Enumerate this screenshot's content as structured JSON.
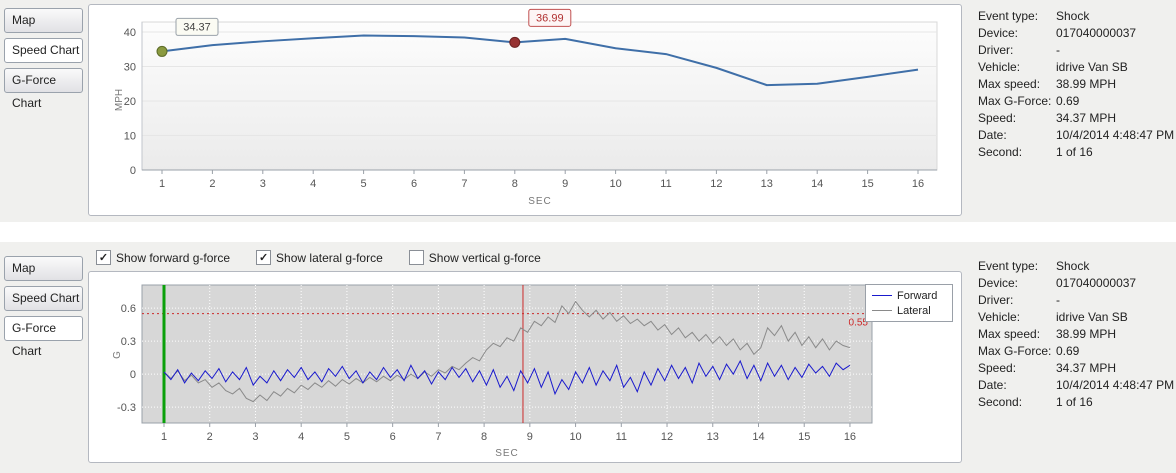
{
  "tabs_top": [
    {
      "label": "Map",
      "active": false
    },
    {
      "label": "Speed Chart",
      "active": true
    },
    {
      "label": "G-Force Chart",
      "active": false
    }
  ],
  "tabs_bottom": [
    {
      "label": "Map",
      "active": false
    },
    {
      "label": "Speed Chart",
      "active": false
    },
    {
      "label": "G-Force Chart",
      "active": true
    }
  ],
  "gforce_controls": {
    "checkboxes": [
      {
        "label": "Show forward g-force",
        "checked": true
      },
      {
        "label": "Show lateral g-force",
        "checked": true
      },
      {
        "label": "Show vertical g-force",
        "checked": false
      }
    ]
  },
  "event_info": {
    "rows": [
      {
        "label": "Event type:",
        "value": "Shock",
        "flagged": true
      },
      {
        "label": "Device:",
        "value": "017040000037",
        "flagged": false
      },
      {
        "label": "Driver:",
        "value": "-",
        "flagged": false
      },
      {
        "label": "Vehicle:",
        "value": "idrive Van SB",
        "flagged": false
      },
      {
        "label": "Max speed:",
        "value": "38.99 MPH",
        "flagged": false
      },
      {
        "label": "Max G-Force:",
        "value": "0.69",
        "flagged": true
      },
      {
        "label": "Speed:",
        "value": "34.37 MPH",
        "flagged": false
      },
      {
        "label": "Date:",
        "value": "10/4/2014 4:48:47 PM",
        "flagged": false
      },
      {
        "label": "Second:",
        "value": "1 of 16",
        "flagged": false
      }
    ]
  },
  "chart_data": [
    {
      "type": "line",
      "title": "Speed Chart",
      "xlabel": "SEC",
      "ylabel": "MPH",
      "x": [
        1,
        2,
        3,
        4,
        5,
        6,
        7,
        8,
        9,
        10,
        11,
        12,
        13,
        14,
        15,
        16
      ],
      "values": [
        34.37,
        36.2,
        37.3,
        38.2,
        38.99,
        38.8,
        38.4,
        36.99,
        38.0,
        35.3,
        33.6,
        29.6,
        24.6,
        25.0,
        27.0,
        29.1
      ],
      "ylim": [
        0,
        40
      ],
      "yticks": [
        0,
        10,
        20,
        30,
        40
      ],
      "line_color": "#3f6fa8",
      "grid": "faint-horizontal",
      "markers": [
        {
          "x": 1,
          "y": 34.37,
          "label": "34.37",
          "dot": "#8a9a40",
          "dot_border": "#5c6b28",
          "box_fill": "#fbfbf3",
          "box_border": "#9aa2aa",
          "text": "#444444"
        },
        {
          "x": 8,
          "y": 36.99,
          "label": "36.99",
          "dot": "#963232",
          "dot_border": "#6b2222",
          "box_fill": "#fdf5f5",
          "box_border": "#c05050",
          "text": "#b03030"
        }
      ]
    },
    {
      "type": "line",
      "title": "G-Force Chart",
      "xlabel": "SEC",
      "ylabel": "G",
      "x_start": 1.0,
      "x_step": 0.15,
      "ylim": [
        -0.45,
        0.81
      ],
      "yticks": [
        -0.3,
        0,
        0.3,
        0.6
      ],
      "xticks": [
        1,
        2,
        3,
        4,
        5,
        6,
        7,
        8,
        9,
        10,
        11,
        12,
        13,
        14,
        15,
        16
      ],
      "plot_bg": "#d7d7d7",
      "grid": "dotted-both",
      "legend_position": "right",
      "threshold": {
        "y": 0.55,
        "label": "0.55",
        "color": "#cc2a2a"
      },
      "vlines": [
        {
          "x": 1.0,
          "color": "#0aa00a",
          "width": 3
        },
        {
          "x": 8.85,
          "color": "#cc2a2a",
          "width": 1
        }
      ],
      "series": [
        {
          "name": "Forward",
          "color": "#1a1acd",
          "values": [
            0.02,
            -0.05,
            0.04,
            -0.08,
            0.01,
            -0.06,
            0.03,
            -0.04,
            0.05,
            -0.07,
            0.02,
            -0.05,
            0.06,
            -0.1,
            -0.02,
            -0.08,
            0.03,
            -0.06,
            0.04,
            -0.03,
            0.06,
            -0.05,
            0.02,
            -0.07,
            0.05,
            -0.02,
            0.07,
            -0.04,
            0.03,
            -0.08,
            0.02,
            -0.05,
            0.06,
            -0.03,
            0.04,
            -0.06,
            0.08,
            -0.04,
            0.03,
            -0.09,
            0.02,
            -0.05,
            0.06,
            -0.03,
            0.05,
            -0.07,
            0.03,
            -0.1,
            0.04,
            -0.12,
            -0.02,
            -0.15,
            0.03,
            -0.08,
            0.05,
            -0.12,
            0.02,
            -0.18,
            -0.05,
            -0.14,
            0.02,
            -0.08,
            0.06,
            -0.1,
            0.03,
            -0.06,
            0.08,
            -0.12,
            -0.03,
            -0.16,
            0.02,
            -0.1,
            0.05,
            -0.06,
            0.08,
            -0.04,
            0.06,
            -0.08,
            0.1,
            -0.02,
            0.07,
            -0.05,
            0.09,
            0.0,
            0.12,
            -0.04,
            0.08,
            -0.06,
            0.1,
            -0.02,
            0.08,
            -0.05,
            0.06,
            -0.03,
            0.09,
            0.01,
            0.07,
            -0.02,
            0.1,
            0.04,
            0.08
          ]
        },
        {
          "name": "Lateral",
          "color": "#8a8a8a",
          "values": [
            0.02,
            -0.04,
            0.03,
            -0.06,
            -0.01,
            -0.08,
            -0.05,
            -0.12,
            -0.08,
            -0.15,
            -0.18,
            -0.13,
            -0.22,
            -0.25,
            -0.19,
            -0.24,
            -0.16,
            -0.2,
            -0.13,
            -0.17,
            -0.1,
            -0.14,
            -0.08,
            -0.12,
            -0.06,
            -0.11,
            -0.05,
            -0.09,
            -0.04,
            -0.08,
            -0.03,
            -0.07,
            -0.02,
            -0.06,
            -0.01,
            -0.05,
            0.0,
            -0.04,
            0.02,
            -0.02,
            0.04,
            0.01,
            0.07,
            0.04,
            0.1,
            0.15,
            0.12,
            0.22,
            0.28,
            0.25,
            0.33,
            0.3,
            0.42,
            0.38,
            0.48,
            0.44,
            0.52,
            0.47,
            0.62,
            0.55,
            0.66,
            0.58,
            0.52,
            0.58,
            0.5,
            0.56,
            0.48,
            0.53,
            0.46,
            0.5,
            0.44,
            0.48,
            0.4,
            0.45,
            0.36,
            0.42,
            0.33,
            0.38,
            0.3,
            0.36,
            0.28,
            0.34,
            0.26,
            0.32,
            0.22,
            0.28,
            0.18,
            0.24,
            0.42,
            0.35,
            0.44,
            0.3,
            0.38,
            0.26,
            0.34,
            0.24,
            0.32,
            0.22,
            0.3,
            0.26,
            0.24
          ]
        }
      ]
    }
  ]
}
